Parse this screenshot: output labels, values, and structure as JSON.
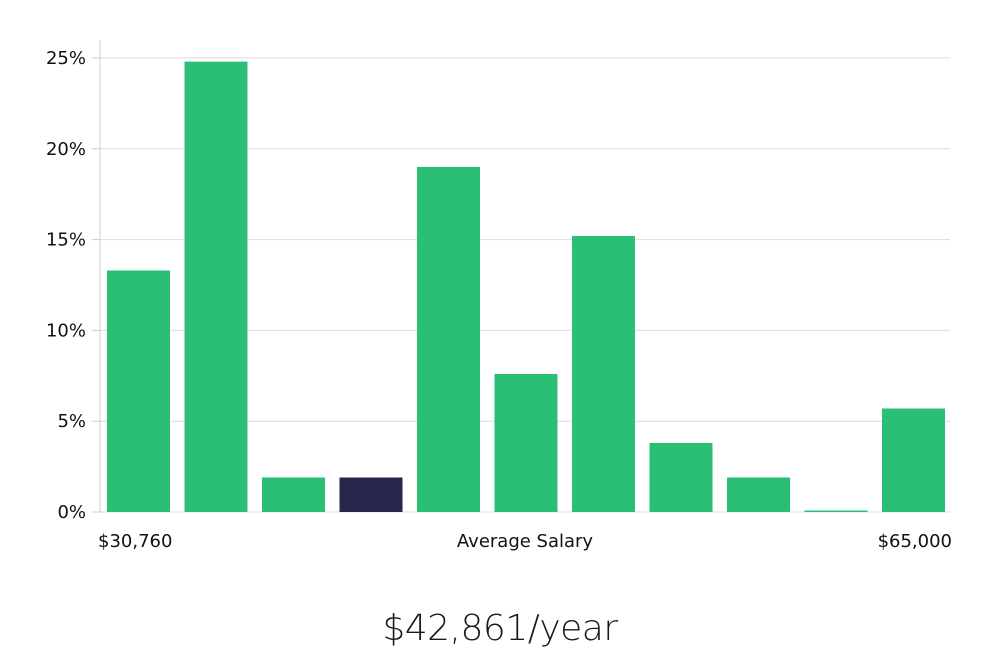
{
  "chart_data": {
    "type": "bar",
    "title": "",
    "xlabel": "Average Salary",
    "ylabel": "",
    "x_min_label": "$30,760",
    "x_max_label": "$65,000",
    "ylim": [
      0,
      25
    ],
    "yticks": [
      0,
      5,
      10,
      15,
      20,
      25
    ],
    "ytick_labels": [
      "0%",
      "5%",
      "10%",
      "15%",
      "20%",
      "25%"
    ],
    "values": [
      13.3,
      24.8,
      1.9,
      1.9,
      19.0,
      7.6,
      15.2,
      3.8,
      1.9,
      0.05,
      5.7
    ],
    "highlight_index": 3,
    "colors": {
      "bar": "#2bbf76",
      "highlight": "#28254a",
      "grid": "#dddddd",
      "axis": "#cccccc"
    }
  },
  "summary": {
    "salary": "$42,861/year"
  }
}
